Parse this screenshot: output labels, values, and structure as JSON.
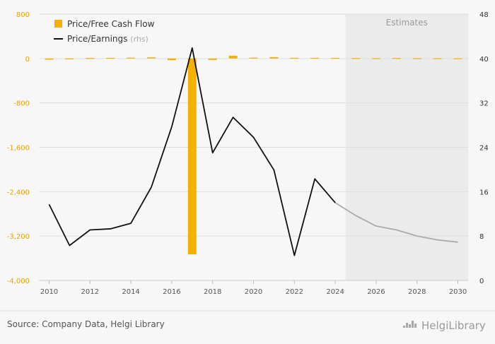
{
  "chart_data": {
    "type": "bar+line",
    "x": [
      2010,
      2011,
      2012,
      2013,
      2014,
      2015,
      2016,
      2017,
      2018,
      2019,
      2020,
      2021,
      2022,
      2023,
      2024,
      2025,
      2026,
      2027,
      2028,
      2029,
      2030
    ],
    "x_ticks": [
      "2010",
      "2012",
      "2014",
      "2016",
      "2018",
      "2020",
      "2022",
      "2024",
      "2026",
      "2028",
      "2030"
    ],
    "left_axis": {
      "ylim": [
        -4000,
        800
      ],
      "ticks": [
        "800",
        "0",
        "-800",
        "-1,600",
        "-2,400",
        "-3,200",
        "-4,000"
      ],
      "tick_values": [
        800,
        0,
        -800,
        -1600,
        -2400,
        -3200,
        -4000
      ]
    },
    "right_axis": {
      "ylim": [
        0,
        48
      ],
      "ticks": [
        "48",
        "40",
        "32",
        "24",
        "16",
        "8",
        "0"
      ],
      "tick_values": [
        48,
        40,
        32,
        24,
        16,
        8,
        0
      ]
    },
    "series": [
      {
        "name": "Price/Free Cash Flow",
        "kind": "bar",
        "axis": "left",
        "color": "#f5b000",
        "values": [
          -20,
          -5,
          10,
          12,
          15,
          20,
          -30,
          -3530,
          -25,
          50,
          15,
          25,
          12,
          12,
          10,
          8,
          6,
          10,
          6,
          5,
          4
        ]
      },
      {
        "name": "Price/Earnings",
        "name_suffix": "(rhs)",
        "kind": "line",
        "axis": "right",
        "color": "#111111",
        "estimate_color": "#aaaaaa",
        "actual_values": [
          13.7,
          6.3,
          9.1,
          9.3,
          10.3,
          16.8,
          27.7,
          41.9,
          23.0,
          29.4,
          25.8,
          19.9,
          4.5,
          18.3,
          14.0
        ],
        "estimate_values": [
          14.0,
          11.7,
          9.8,
          9.1,
          8.0,
          7.3,
          6.9
        ]
      }
    ],
    "estimates_from": 2024.5,
    "estimates_label": "Estimates",
    "legend": {
      "position": "top-left"
    },
    "grid": true
  },
  "footer": {
    "source": "Source: Company Data, Helgi Library",
    "brand": "HelgiLibrary"
  }
}
